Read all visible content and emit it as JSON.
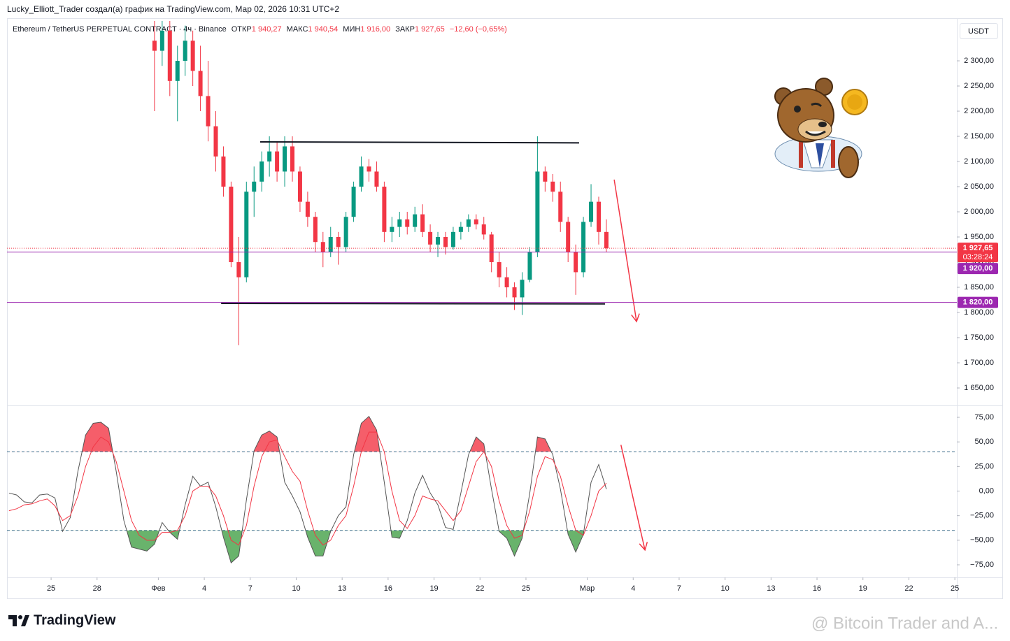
{
  "header": {
    "author_line": "Lucky_Elliott_Trader создал(а) график на TradingView.com, Мар 02, 2026 10:31 UTC+2"
  },
  "legend": {
    "symbol": "Ethereum / TetherUS PERPETUAL CONTRACT · 4ч · Binance",
    "open_label": "ОТКР",
    "open": "1 940,27",
    "high_label": "МАКС",
    "high": "1 940,54",
    "low_label": "МИН",
    "low": "1 916,00",
    "close_label": "ЗАКР",
    "close": "1 927,65",
    "change": "−12,60 (−0,65%)"
  },
  "currency": "USDT",
  "footer": {
    "brand": "TradingView",
    "watermark": "@ Bitcoin Trader and A..."
  },
  "chart_data": [
    {
      "type": "candlestick",
      "x": [
        31.75,
        32.25,
        32.75,
        33.25,
        33.75,
        34.25,
        34.75,
        35.25,
        35.75,
        36.25,
        36.75,
        37.25,
        37.75,
        38.25,
        38.75,
        39.25,
        39.75,
        40.25,
        40.75,
        41.25,
        41.75,
        42.25,
        42.75,
        43.25,
        43.75,
        44.25,
        44.75,
        45.25,
        45.75,
        46.25,
        46.75,
        47.25,
        47.75,
        48.25,
        48.75,
        49.25,
        49.75,
        50.25,
        50.75,
        51.25,
        51.75,
        52.25,
        52.75,
        53.25,
        53.75,
        54.25,
        54.75,
        55.25,
        55.75,
        56.25,
        56.75,
        57.25,
        57.75,
        58.25,
        58.75,
        59.25,
        59.75,
        60.25,
        60.75,
        61.25
      ],
      "open": [
        2340,
        2320,
        2360,
        2260,
        2300,
        2340,
        2280,
        2230,
        2170,
        2110,
        2050,
        1900,
        1870,
        2040,
        2060,
        2100,
        2120,
        2080,
        2130,
        2080,
        2020,
        1990,
        1940,
        1920,
        1950,
        1930,
        1990,
        2050,
        2090,
        2080,
        2050,
        1960,
        1970,
        1985,
        1970,
        1995,
        1960,
        1935,
        1950,
        1930,
        1960,
        1970,
        1985,
        1975,
        1955,
        1900,
        1870,
        1850,
        1830,
        1865,
        1920,
        2080,
        2060,
        2040,
        1980,
        1920,
        1880,
        1980,
        2020,
        1960
      ],
      "high": [
        2380,
        2380,
        2380,
        2330,
        2370,
        2360,
        2330,
        2300,
        2200,
        2130,
        2060,
        1950,
        2060,
        2090,
        2120,
        2150,
        2140,
        2150,
        2150,
        2090,
        2040,
        2000,
        1960,
        1970,
        1960,
        2000,
        2060,
        2110,
        2105,
        2100,
        2060,
        1990,
        2000,
        2000,
        2010,
        2015,
        1975,
        1960,
        1960,
        1970,
        1980,
        1995,
        1995,
        1990,
        1960,
        1920,
        1890,
        1860,
        1880,
        1930,
        2150,
        2090,
        2075,
        2060,
        1990,
        1935,
        1990,
        2055,
        2030,
        1985
      ],
      "low": [
        2200,
        2290,
        2230,
        2180,
        2270,
        2250,
        2200,
        2140,
        2080,
        2030,
        1890,
        1735,
        1860,
        1990,
        2040,
        2070,
        2060,
        2050,
        2060,
        2000,
        1970,
        1920,
        1890,
        1910,
        1895,
        1920,
        1980,
        2040,
        2060,
        2040,
        1940,
        1940,
        1950,
        1955,
        1960,
        1950,
        1920,
        1910,
        1915,
        1925,
        1945,
        1960,
        1965,
        1945,
        1880,
        1850,
        1830,
        1805,
        1795,
        1860,
        1910,
        2040,
        2020,
        1960,
        1900,
        1835,
        1870,
        1970,
        1935,
        1920
      ],
      "close": [
        2320,
        2360,
        2260,
        2300,
        2340,
        2280,
        2230,
        2170,
        2110,
        2050,
        1900,
        1870,
        2040,
        2060,
        2100,
        2120,
        2080,
        2130,
        2080,
        2020,
        1990,
        1940,
        1920,
        1950,
        1930,
        1990,
        2050,
        2090,
        2080,
        2050,
        1960,
        1970,
        1985,
        1970,
        1995,
        1960,
        1935,
        1950,
        1930,
        1960,
        1970,
        1985,
        1975,
        1955,
        1900,
        1870,
        1850,
        1830,
        1865,
        1920,
        2080,
        2060,
        2040,
        1980,
        1920,
        1880,
        1980,
        2020,
        1960,
        1927.65
      ],
      "up_color": "#089981",
      "down_color": "#f23645",
      "xlim": [
        22.12,
        84.13
      ],
      "ylim": [
        1615.3,
        2379.2
      ],
      "yticks": [
        {
          "value": 1650,
          "label": "1 650,00"
        },
        {
          "value": 1700,
          "label": "1 700,00"
        },
        {
          "value": 1750,
          "label": "1 750,00"
        },
        {
          "value": 1800,
          "label": "1 800,00"
        },
        {
          "value": 1850,
          "label": "1 850,00"
        },
        {
          "value": 1900,
          "label": "1 900,00"
        },
        {
          "value": 1950,
          "label": "1 950,00"
        },
        {
          "value": 2000,
          "label": "2 000,00"
        },
        {
          "value": 2050,
          "label": "2 050,00"
        },
        {
          "value": 2100,
          "label": "2 100,00"
        },
        {
          "value": 2150,
          "label": "2 150,00"
        },
        {
          "value": 2200,
          "label": "2 200,00"
        },
        {
          "value": 2250,
          "label": "2 250,00"
        },
        {
          "value": 2300,
          "label": "2 300,00"
        }
      ],
      "price_lines": [
        {
          "value": 1927.65,
          "label": "1 927,65",
          "countdown": "03:28:24",
          "color": "#f23645",
          "style": "dotted"
        },
        {
          "value": 1920,
          "label": "1 920,00",
          "color": "#9c27b0",
          "style": "solid"
        },
        {
          "value": 1820,
          "label": "1 820,00",
          "color": "#9c27b0",
          "style": "solid"
        }
      ],
      "trendlines": [
        {
          "x": [
            38.65,
            59.47
          ],
          "y": [
            2139,
            2137
          ],
          "color": "#131722"
        },
        {
          "x": [
            36.1,
            61.16
          ],
          "y": [
            1818,
            1817
          ],
          "color": "#131722"
        }
      ],
      "arrows": [
        {
          "x": [
            61.76,
            63.22
          ],
          "y": [
            2064,
            1782
          ],
          "color": "#f23645"
        }
      ]
    },
    {
      "type": "line",
      "x": [
        22.25,
        22.75,
        23.25,
        23.75,
        24.25,
        24.75,
        25.25,
        25.75,
        26.25,
        26.75,
        27.25,
        27.75,
        28.25,
        28.75,
        29.25,
        29.75,
        30.25,
        30.75,
        31.25,
        31.75,
        32.25,
        32.75,
        33.25,
        33.75,
        34.25,
        34.75,
        35.25,
        35.75,
        36.25,
        36.75,
        37.25,
        37.75,
        38.25,
        38.75,
        39.25,
        39.75,
        40.25,
        40.75,
        41.25,
        41.75,
        42.25,
        42.75,
        43.25,
        43.75,
        44.25,
        44.75,
        45.25,
        45.75,
        46.25,
        46.75,
        47.25,
        47.75,
        48.25,
        48.75,
        49.25,
        49.75,
        50.25,
        50.75,
        51.25,
        51.75,
        52.25,
        52.75,
        53.25,
        53.75,
        54.25,
        54.75,
        55.25,
        55.75,
        56.25,
        56.75,
        57.25,
        57.75,
        58.25,
        58.75,
        59.25,
        59.75,
        60.25,
        60.75,
        61.25
      ],
      "series": [
        {
          "color": "#555555",
          "values": [
            -2,
            -4,
            -11,
            -12,
            -4,
            -3,
            -7,
            -41,
            -27,
            20,
            57,
            69,
            70,
            64,
            20,
            -30,
            -57,
            -59,
            -61,
            -54,
            -32,
            -42,
            -49,
            -14,
            15,
            5,
            9,
            -16,
            -47,
            -73,
            -66,
            -9,
            41,
            57,
            61,
            55,
            9,
            -5,
            -21,
            -47,
            -66,
            -66,
            -41,
            -25,
            -16,
            37,
            69,
            76,
            62,
            9,
            -47,
            -48,
            -30,
            -2,
            16,
            -2,
            -14,
            -37,
            -39,
            -2,
            37,
            55,
            48,
            2,
            -41,
            -48,
            -66,
            -48,
            -2,
            55,
            53,
            37,
            2,
            -44,
            -62,
            -44,
            9,
            27,
            2
          ]
        },
        {
          "color": "#f23645",
          "values": [
            -20,
            -18,
            -14,
            -13,
            -10,
            -8,
            -15,
            -30,
            -25,
            -5,
            25,
            45,
            55,
            50,
            30,
            0,
            -30,
            -45,
            -50,
            -50,
            -42,
            -42,
            -40,
            -25,
            0,
            5,
            5,
            -5,
            -25,
            -50,
            -55,
            -35,
            5,
            35,
            50,
            52,
            35,
            20,
            10,
            -20,
            -45,
            -55,
            -50,
            -35,
            -25,
            5,
            40,
            60,
            60,
            40,
            0,
            -30,
            -38,
            -25,
            -5,
            -8,
            -10,
            -20,
            -30,
            -20,
            5,
            30,
            40,
            25,
            -10,
            -35,
            -48,
            -45,
            -20,
            15,
            35,
            32,
            15,
            -15,
            -40,
            -45,
            -25,
            0,
            8
          ]
        }
      ],
      "levels": [
        40,
        -40
      ],
      "level_color": "#3c6e8a",
      "above_color": "#f23645",
      "below_color": "#43a047",
      "xlim": [
        22.12,
        84.13
      ],
      "ylim": [
        -87.8,
        87.1
      ],
      "yticks": [
        {
          "value": -75,
          "label": "−75,00"
        },
        {
          "value": -50,
          "label": "−50,00"
        },
        {
          "value": -25,
          "label": "−25,00"
        },
        {
          "value": 0,
          "label": "0,00"
        },
        {
          "value": 25,
          "label": "25,00"
        },
        {
          "value": 50,
          "label": "50,00"
        },
        {
          "value": 75,
          "label": "75,00"
        }
      ],
      "xticks": [
        25,
        28,
        {
          "value": 32,
          "label": "Фев"
        },
        {
          "value": 35,
          "label": "4"
        },
        {
          "value": 38,
          "label": "7"
        },
        {
          "value": 41,
          "label": "10"
        },
        {
          "value": 44,
          "label": "13"
        },
        {
          "value": 47,
          "label": "16"
        },
        {
          "value": 50,
          "label": "19"
        },
        {
          "value": 53,
          "label": "22"
        },
        {
          "value": 56,
          "label": "25"
        },
        {
          "value": 60,
          "label": "Мар"
        },
        {
          "value": 63,
          "label": "4"
        },
        {
          "value": 66,
          "label": "7"
        },
        {
          "value": 69,
          "label": "10"
        },
        {
          "value": 72,
          "label": "13"
        },
        {
          "value": 75,
          "label": "16"
        },
        {
          "value": 78,
          "label": "19"
        },
        {
          "value": 81,
          "label": "22"
        },
        {
          "value": 84,
          "label": "25"
        }
      ],
      "arrows": [
        {
          "x": [
            62.2,
            63.77
          ],
          "y": [
            47,
            -60
          ],
          "color": "#f23645"
        }
      ]
    }
  ]
}
